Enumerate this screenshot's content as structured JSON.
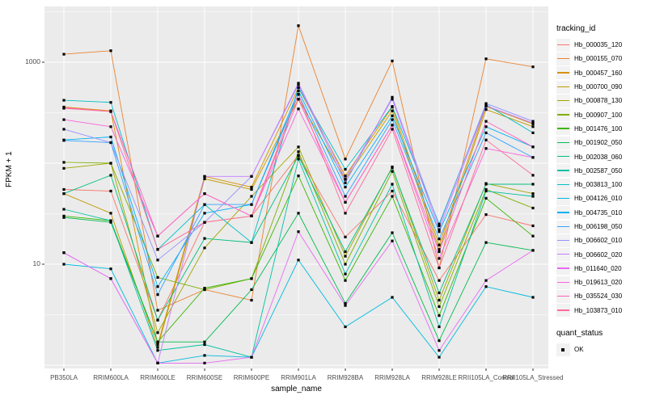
{
  "chart_data": {
    "type": "line",
    "xlabel": "sample_name",
    "ylabel": "FPKM + 1",
    "y_scale": "log10",
    "y_ticks": [
      1000,
      10
    ],
    "y_tick_labels": [
      "1000",
      "10"
    ],
    "ylim": [
      1,
      3400
    ],
    "grid": "on",
    "panel_bg": "#EBEBEB",
    "point_color": "#000000",
    "point_shape": "square",
    "legend_position": "right",
    "legend_series_title": "tracking_id",
    "legend_shape_title": "quant_status",
    "legend_shape_items": [
      {
        "label": "OK",
        "marker": "black-square"
      }
    ],
    "x_categories": [
      "PB350LA",
      "RRIM600LA",
      "RRIM600LE",
      "RRIM600SE",
      "RRIM600PE",
      "RRIM901LA",
      "RRIM928BA",
      "RRIM928LA",
      "RRIM928LE",
      "RRII105LA_Control",
      "RRII105LA_Stressed"
    ],
    "series": [
      {
        "name": "Hb_000035_120",
        "color": "#F8766D",
        "values": [
          55,
          53,
          2.8,
          26,
          30,
          120,
          18.6,
          53,
          6.9,
          31,
          24
        ]
      },
      {
        "name": "Hb_000155_070",
        "color": "#EA8331",
        "values": [
          1200,
          1300,
          3.5,
          5.6,
          4.4,
          2300,
          110,
          1030,
          9.2,
          1080,
          900
        ]
      },
      {
        "name": "Hb_000457_160",
        "color": "#D89000",
        "values": [
          360,
          330,
          1.6,
          74,
          58,
          560,
          75,
          360,
          15.5,
          365,
          245
        ]
      },
      {
        "name": "Hb_000700_090",
        "color": "#C09B00",
        "values": [
          50,
          32,
          1.5,
          70,
          55,
          430,
          69,
          330,
          14,
          340,
          230
        ]
      },
      {
        "name": "Hb_000878_130",
        "color": "#A3A500",
        "values": [
          89,
          100,
          2.1,
          14.5,
          47,
          145,
          12,
          92,
          4.4,
          63,
          50
        ]
      },
      {
        "name": "Hb_000907_100",
        "color": "#7CAE00",
        "values": [
          102,
          100,
          7.4,
          5.6,
          7.2,
          130,
          10,
          83,
          3.8,
          55,
          36
        ]
      },
      {
        "name": "Hb_001476_100",
        "color": "#39B600",
        "values": [
          30,
          27,
          1.7,
          5.8,
          7.2,
          75,
          6.9,
          47,
          3.1,
          45,
          19
        ]
      },
      {
        "name": "Hb_001902_050",
        "color": "#00BB4E",
        "values": [
          29,
          26,
          1.7,
          1.7,
          5.6,
          32,
          4.1,
          20.5,
          1.75,
          16.4,
          13.7
        ]
      },
      {
        "name": "Hb_002038_060",
        "color": "#00BF7D",
        "values": [
          50,
          76,
          2.8,
          18,
          16.4,
          118,
          13.3,
          90,
          5.2,
          62,
          62
        ]
      },
      {
        "name": "Hb_002587_050",
        "color": "#00C1A3",
        "values": [
          35,
          27,
          1.4,
          1.6,
          1.2,
          110,
          8,
          62,
          2.4,
          53,
          47
        ]
      },
      {
        "name": "Hb_003813_100",
        "color": "#00BFC4",
        "values": [
          420,
          400,
          14,
          39,
          16.4,
          560,
          87,
          365,
          25,
          380,
          200
        ]
      },
      {
        "name": "Hb_004126_010",
        "color": "#00BAE0",
        "values": [
          10,
          9,
          1.05,
          1.25,
          1.2,
          11,
          2.4,
          4.7,
          1.2,
          6,
          4.7
        ]
      },
      {
        "name": "Hb_004735_010",
        "color": "#00B0F6",
        "values": [
          170,
          182,
          6,
          32,
          39,
          520,
          58,
          295,
          21,
          230,
          145
        ]
      },
      {
        "name": "Hb_006198_050",
        "color": "#35A2FF",
        "values": [
          168,
          160,
          5,
          39,
          39,
          480,
          47,
          270,
          17.8,
          200,
          114
        ]
      },
      {
        "name": "Hb_006602_010",
        "color": "#9590FF",
        "values": [
          217,
          160,
          11,
          26,
          74,
          600,
          64,
          450,
          24,
          390,
          260
        ]
      },
      {
        "name": "Hb_006602_020",
        "color": "#C77CFF",
        "values": [
          13,
          7.2,
          1.05,
          74,
          74,
          620,
          70,
          430,
          22,
          370,
          250
        ]
      },
      {
        "name": "Hb_011640_020",
        "color": "#E76BF3",
        "values": [
          13,
          7.2,
          1.05,
          1.05,
          1.2,
          21,
          3.9,
          17,
          1.4,
          6.9,
          13.7
        ]
      },
      {
        "name": "Hb_019613_020",
        "color": "#FA62DB",
        "values": [
          270,
          230,
          19,
          50,
          30,
          345,
          41,
          238,
          11.4,
          140,
          114
        ]
      },
      {
        "name": "Hb_035524_030",
        "color": "#FF62BC",
        "values": [
          355,
          325,
          19,
          50,
          30,
          430,
          41,
          238,
          13.3,
          260,
          145
        ]
      },
      {
        "name": "Hb_103873_010",
        "color": "#FF6A98",
        "values": [
          350,
          325,
          14,
          26,
          30,
          480,
          32,
          217,
          9.2,
          170,
          76
        ]
      }
    ]
  }
}
